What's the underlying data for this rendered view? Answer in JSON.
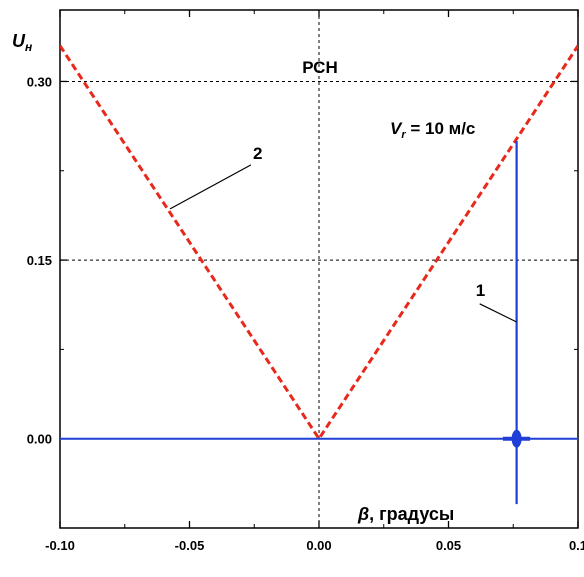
{
  "chart_data": {
    "type": "line",
    "ylabel": "U",
    "ylabel_sub": "н",
    "xlabel": "β, градусы",
    "panel_label": "РСН",
    "vr_label": {
      "main": "V",
      "sub": "r",
      "rest": " = 10 м/с"
    },
    "xlim": [
      -0.1,
      0.1
    ],
    "ylim": [
      -0.075,
      0.36
    ],
    "x_ticks": [
      -0.1,
      -0.05,
      0.0,
      0.05,
      0.1
    ],
    "x_tick_labels": [
      "-0.10",
      "-0.05",
      "0.00",
      "0.05",
      "0.1"
    ],
    "y_ticks": [
      0.0,
      0.15,
      0.3
    ],
    "y_tick_labels": [
      "0.00",
      "0.15",
      "0.30"
    ],
    "grid": "dashed",
    "series": [
      {
        "name": "1",
        "color": "#1f3fd6",
        "style": "solid",
        "x": [
          -0.1,
          0.071,
          0.0763,
          0.0763,
          0.0763,
          0.0763,
          0.0815,
          0.1
        ],
        "y": [
          0.0,
          0.0,
          0.0,
          0.25,
          -0.055,
          0.0,
          0.0,
          0.0
        ]
      },
      {
        "name": "2",
        "color": "#e8281a",
        "style": "dashed",
        "x": [
          -0.1,
          0.0,
          0.1
        ],
        "y": [
          0.33,
          0.0,
          0.33
        ]
      }
    ],
    "annotations": [
      {
        "text": "2",
        "x": -0.0255,
        "y": 0.235
      },
      {
        "text": "1",
        "x": 0.0605,
        "y": 0.12
      }
    ]
  }
}
